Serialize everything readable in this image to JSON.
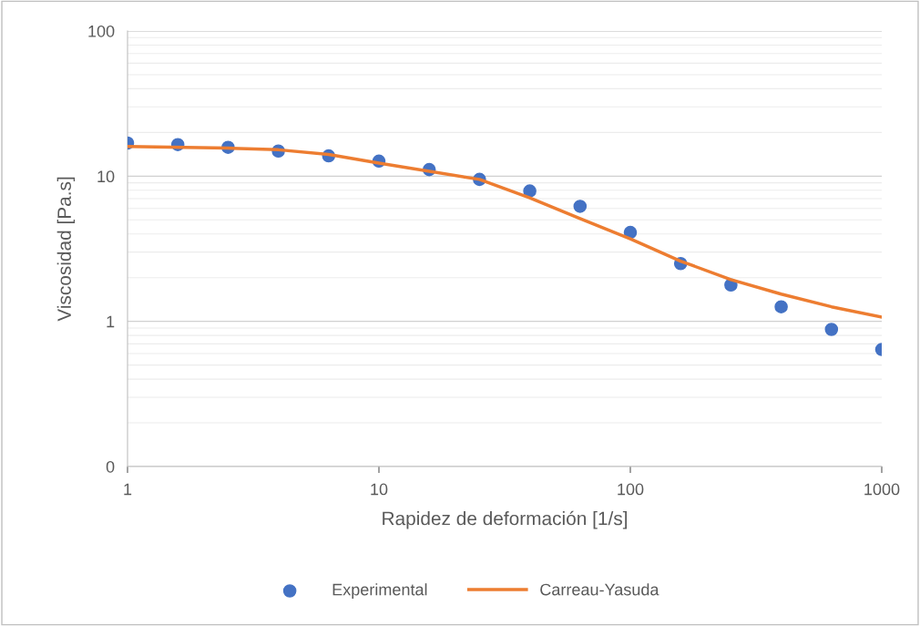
{
  "chart_data": {
    "type": "scatter",
    "xlabel": "Rapidez de deformación [1/s]",
    "ylabel": "Viscosidad [Pa.s]",
    "log": "xy",
    "grid": "y",
    "legend": "bottom",
    "x": [
      1,
      1.585,
      2.512,
      3.981,
      6.31,
      10,
      15.85,
      25.12,
      39.81,
      63.1,
      100,
      158.5,
      251.2,
      398.1,
      631,
      1000
    ],
    "series": [
      {
        "name": "Experimental",
        "marker": "circle",
        "color": "#4472c4",
        "values": [
          16.9,
          16.5,
          15.8,
          14.9,
          13.8,
          12.7,
          11.1,
          9.5,
          7.9,
          6.2,
          4.1,
          2.5,
          1.78,
          1.26,
          0.88,
          0.64
        ]
      },
      {
        "name": "Carreau-Yasuda",
        "type": "line",
        "marker": "none",
        "line_style": "solid",
        "color": "#ed7d31",
        "x": [
          1,
          2.512,
          3.981,
          6.31,
          10,
          25.12,
          39.81,
          63.1,
          100,
          158.5,
          251.2,
          398.1,
          631,
          1000
        ],
        "values": [
          16.0,
          15.6,
          15.2,
          14.1,
          12.3,
          9.5,
          7.1,
          5.1,
          3.7,
          2.6,
          1.94,
          1.54,
          1.26,
          1.07
        ]
      }
    ],
    "xlim": [
      1,
      1000
    ],
    "ylim": [
      0.1,
      100
    ],
    "xticks": [
      1,
      10,
      100,
      1000
    ],
    "yticks": [
      {
        "value": 0.1,
        "label": "0"
      },
      1,
      10,
      100
    ]
  }
}
